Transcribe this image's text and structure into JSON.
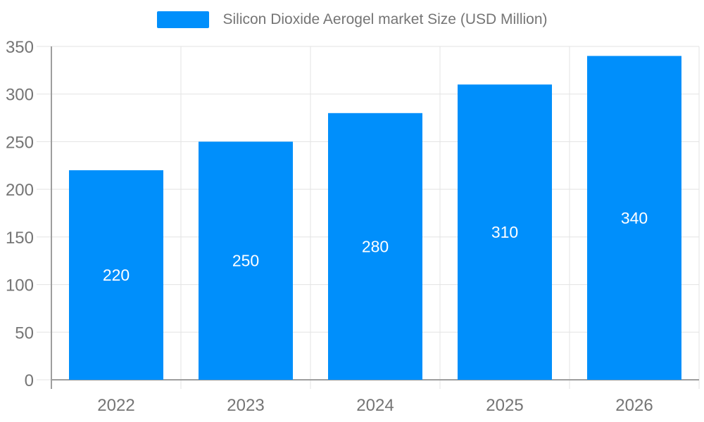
{
  "chart_data": {
    "type": "bar",
    "title": "Silicon Dioxide Aerogel market Size (USD Million)",
    "categories": [
      "2022",
      "2023",
      "2024",
      "2025",
      "2026"
    ],
    "values": [
      220,
      250,
      280,
      310,
      340
    ],
    "series": [
      {
        "name": "Silicon Dioxide Aerogel market Size (USD Million)",
        "values": [
          220,
          250,
          280,
          310,
          340
        ]
      }
    ],
    "value_labels": [
      "220",
      "250",
      "280",
      "310",
      "340"
    ],
    "xlabel": "",
    "ylabel": "",
    "ylim": [
      0,
      350
    ],
    "ytick_step": 50,
    "ytick_labels": [
      "0",
      "50",
      "100",
      "150",
      "200",
      "250",
      "300",
      "350"
    ],
    "grid": true,
    "legend_position": "top",
    "colors": {
      "bar": "#008FFB",
      "axis": "#9e9e9e",
      "grid": "#e3e3e3",
      "tick_label": "#757575",
      "value_label": "#ffffff",
      "legend_text": "#757575"
    }
  }
}
